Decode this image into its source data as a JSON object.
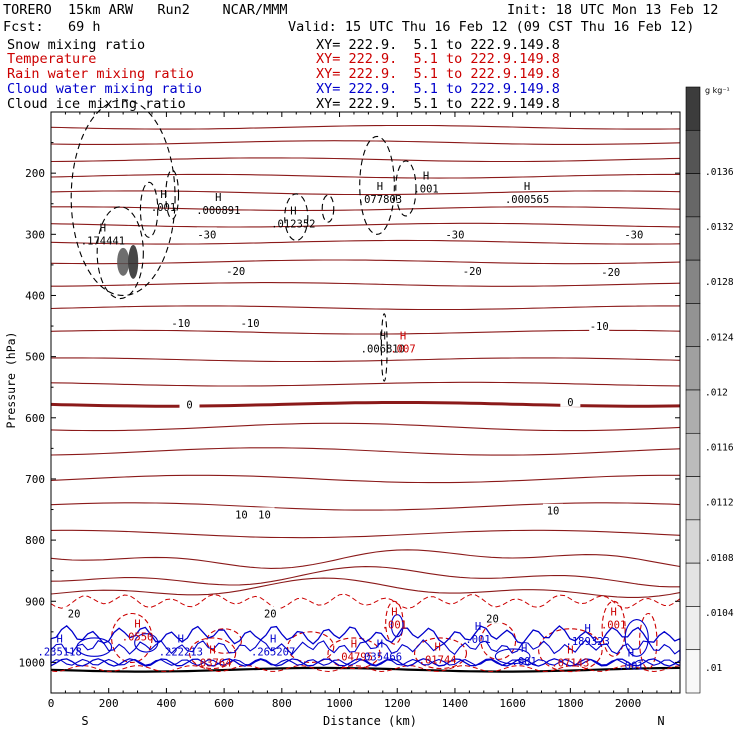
{
  "header": {
    "model": "TORERO  15km ARW   Run2    NCAR/MMM",
    "init": "Init: 18 UTC Mon 13 Feb 12",
    "fcst": "Fcst:   69 h",
    "valid": "Valid: 15 UTC Thu 16 Feb 12 (09 CST Thu 16 Feb 12)"
  },
  "fields": [
    {
      "name": "Snow mixing ratio",
      "xy": "XY= 222.9.  5.1 to 222.9.149.8",
      "color": "#000000"
    },
    {
      "name": "Temperature",
      "xy": "XY= 222.9.  5.1 to 222.9.149.8",
      "color": "#cc0000"
    },
    {
      "name": "Rain water mixing ratio",
      "xy": "XY= 222.9.  5.1 to 222.9.149.8",
      "color": "#cc0000"
    },
    {
      "name": "Cloud water mixing ratio",
      "xy": "XY= 222.9.  5.1 to 222.9.149.8",
      "color": "#0000cc"
    },
    {
      "name": "Cloud ice mixing ratio",
      "xy": "XY= 222.9.  5.1 to 222.9.149.8",
      "color": "#000000"
    }
  ],
  "chart_data": {
    "type": "contour",
    "xlabel": "Distance (km)",
    "ylabel": "Pressure (hPa)",
    "x_ticks": [
      0,
      200,
      400,
      600,
      800,
      1000,
      1200,
      1400,
      1600,
      1800,
      2000
    ],
    "y_ticks": [
      200,
      300,
      400,
      500,
      600,
      700,
      800,
      900,
      1000
    ],
    "xlim": [
      0,
      2180
    ],
    "ylim": [
      1050,
      100
    ],
    "x_end_labels": {
      "left": "S",
      "right": "N"
    },
    "colorbar": {
      "units": "g kg⁻¹",
      "ticks": [
        ".0136",
        ".0132",
        ".0128",
        ".0124",
        ".012",
        ".0116",
        ".0112",
        ".0108",
        ".0104",
        ".01"
      ],
      "gray_levels": [
        "#3c3c3c",
        "#555555",
        "#676767",
        "#777777",
        "#858585",
        "#939393",
        "#a0a0a0",
        "#adadad",
        "#bbbbbb",
        "#c9c9c9",
        "#d7d7d7",
        "#e3e3e3",
        "#eeeeee",
        "#f8f8f8"
      ]
    },
    "temperature_labels": [
      {
        "text": "-30",
        "x": 540,
        "p": 300
      },
      {
        "text": "-30",
        "x": 1400,
        "p": 300
      },
      {
        "text": "-30",
        "x": 2020,
        "p": 300
      },
      {
        "text": "-20",
        "x": 640,
        "p": 360
      },
      {
        "text": "-20",
        "x": 1460,
        "p": 360
      },
      {
        "text": "-20",
        "x": 1940,
        "p": 362
      },
      {
        "text": "-10",
        "x": 450,
        "p": 445
      },
      {
        "text": "-10",
        "x": 690,
        "p": 445
      },
      {
        "text": "-10",
        "x": 1900,
        "p": 450
      },
      {
        "text": "0",
        "x": 480,
        "p": 578
      },
      {
        "text": "0",
        "x": 1800,
        "p": 574
      },
      {
        "text": "10",
        "x": 660,
        "p": 758
      },
      {
        "text": "10",
        "x": 740,
        "p": 758
      },
      {
        "text": "10",
        "x": 1740,
        "p": 752
      },
      {
        "text": "20",
        "x": 80,
        "p": 920
      },
      {
        "text": "20",
        "x": 760,
        "p": 920
      },
      {
        "text": "20",
        "x": 1530,
        "p": 928
      }
    ],
    "extrema_labels": [
      {
        "h": "H",
        "value": ".174441",
        "x": 180,
        "p": 310,
        "color": "#000000"
      },
      {
        "h": "H",
        "value": ".001",
        "x": 390,
        "p": 255,
        "color": "#000000"
      },
      {
        "h": "H",
        "value": ".000891",
        "x": 580,
        "p": 260,
        "color": "#000000"
      },
      {
        "h": "H",
        "value": ".012352",
        "x": 840,
        "p": 282,
        "color": "#000000"
      },
      {
        "h": "H",
        "value": ".077803",
        "x": 1140,
        "p": 242,
        "color": "#000000"
      },
      {
        "h": "H",
        "value": ".001",
        "x": 1300,
        "p": 225,
        "color": "#000000"
      },
      {
        "h": "H",
        "value": ".000565",
        "x": 1650,
        "p": 242,
        "color": "#000000"
      },
      {
        "h": "H",
        "value": ".006810",
        "x": 1150,
        "p": 487,
        "color": "#000000"
      },
      {
        "h": "H",
        "value": ".007",
        "x": 1220,
        "p": 487,
        "color": "#cc0000"
      },
      {
        "h": "H",
        "value": ".0550",
        "x": 300,
        "p": 958,
        "color": "#cc0000"
      },
      {
        "h": "H",
        "value": ".03764",
        "x": 560,
        "p": 1000,
        "color": "#cc0000"
      },
      {
        "h": "H",
        "value": ".001",
        "x": 1190,
        "p": 938,
        "color": "#cc0000"
      },
      {
        "h": "H",
        "value": ".04795",
        "x": 1050,
        "p": 990,
        "color": "#cc0000"
      },
      {
        "h": "H",
        "value": ".01744",
        "x": 1340,
        "p": 995,
        "color": "#cc0000"
      },
      {
        "h": "H",
        "value": ".07143",
        "x": 1800,
        "p": 1000,
        "color": "#cc0000"
      },
      {
        "h": "H",
        "value": ".001",
        "x": 1950,
        "p": 938,
        "color": "#cc0000"
      },
      {
        "h": "H",
        "value": ".235118",
        "x": 30,
        "p": 982,
        "color": "#0000cc"
      },
      {
        "h": "H",
        "value": ".222213",
        "x": 450,
        "p": 982,
        "color": "#0000cc"
      },
      {
        "h": "H",
        "value": ".265207",
        "x": 770,
        "p": 982,
        "color": "#0000cc"
      },
      {
        "h": "H",
        "value": ".035466",
        "x": 1140,
        "p": 990,
        "color": "#0000cc"
      },
      {
        "h": "H",
        "value": ".001",
        "x": 1480,
        "p": 962,
        "color": "#0000cc"
      },
      {
        "h": "H",
        "value": ".189323",
        "x": 1860,
        "p": 965,
        "color": "#0000cc"
      },
      {
        "h": "H",
        "value": ".001",
        "x": 1640,
        "p": 998,
        "color": "#0000cc"
      },
      {
        "h": "H",
        "value": ".001",
        "x": 2010,
        "p": 1005,
        "color": "#0000cc"
      }
    ]
  }
}
